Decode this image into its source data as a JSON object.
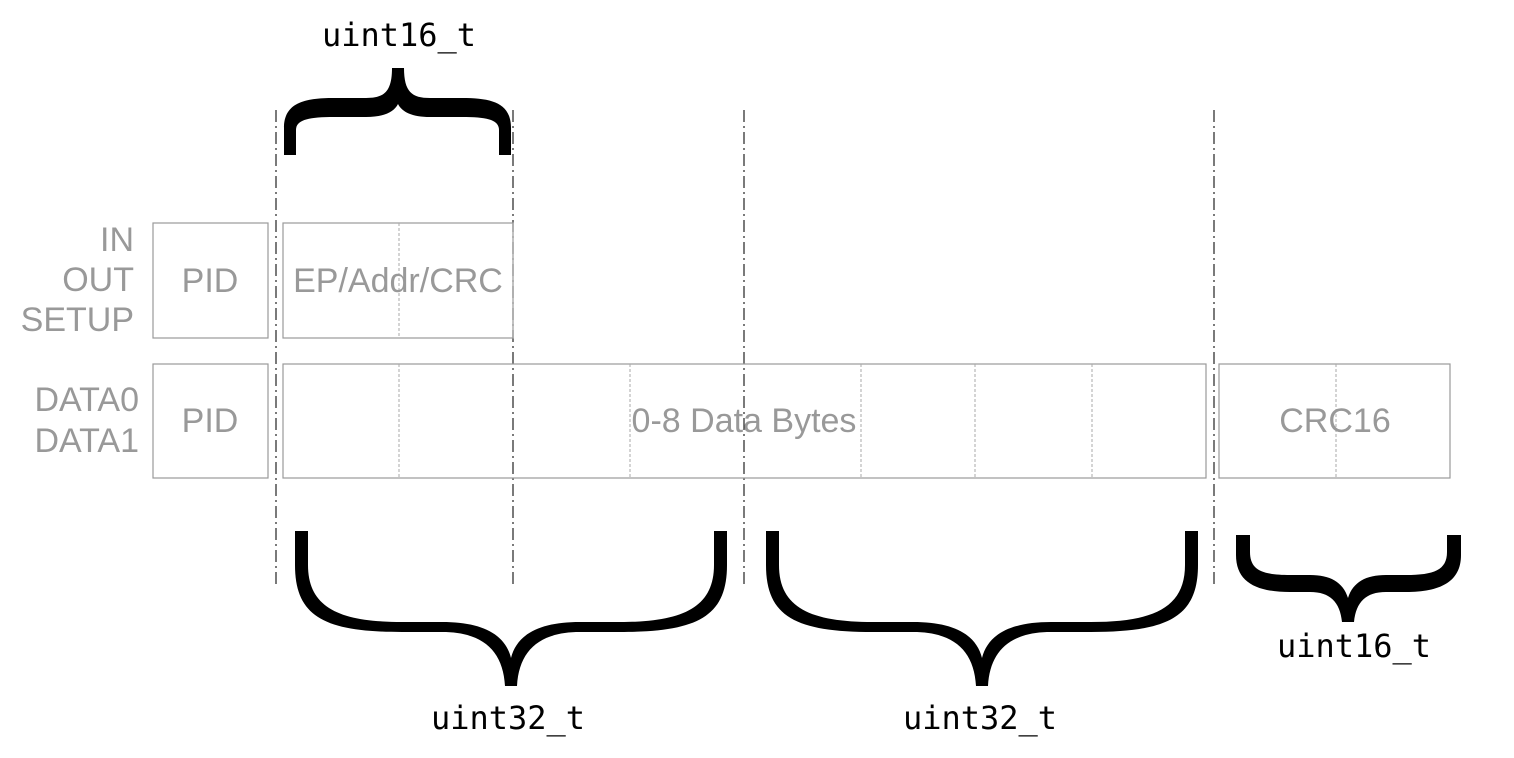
{
  "row_labels": {
    "token": [
      "IN",
      "OUT",
      "SETUP"
    ],
    "data": [
      "DATA0",
      "DATA1"
    ]
  },
  "fields": {
    "token_pid": "PID",
    "token_body": "EP/Addr/CRC",
    "data_pid": "PID",
    "data_body": "0-8 Data Bytes",
    "crc": "CRC16"
  },
  "type_labels": {
    "top": "uint16_t",
    "bottom_left": "uint32_t",
    "bottom_middle": "uint32_t",
    "bottom_right": "uint16_t"
  }
}
